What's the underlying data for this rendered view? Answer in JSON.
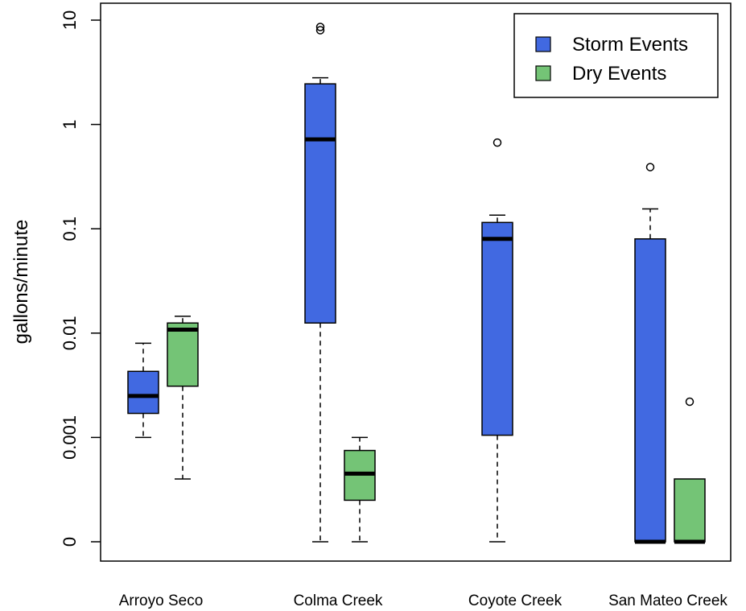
{
  "chart_data": {
    "type": "boxplot",
    "xlabel": "",
    "ylabel": "gallons/minute",
    "y_scale": "log",
    "y_ticks": [
      {
        "value": 0.0001,
        "label": "0"
      },
      {
        "value": 0.001,
        "label": "0.001"
      },
      {
        "value": 0.01,
        "label": "0.01"
      },
      {
        "value": 0.1,
        "label": "0.1"
      },
      {
        "value": 1,
        "label": "1"
      },
      {
        "value": 10,
        "label": "10"
      }
    ],
    "categories": [
      "Arroyo Seco",
      "Colma Creek",
      "Coyote Creek",
      "San Mateo Creek"
    ],
    "legend": {
      "position": "top-right",
      "entries": [
        {
          "label": "Storm Events",
          "color": "#4169e1"
        },
        {
          "label": "Dry Events",
          "color": "#74c476"
        }
      ]
    },
    "series": [
      {
        "name": "Storm Events",
        "color": "#4169e1",
        "boxes": [
          {
            "category": "Arroyo Seco",
            "whisker_low": 0.001,
            "q1": 0.0017,
            "median": 0.0025,
            "q3": 0.0043,
            "whisker_high": 0.008,
            "outliers": []
          },
          {
            "category": "Colma Creek",
            "whisker_low": 0.0001,
            "q1": 0.0125,
            "median": 0.72,
            "q3": 2.45,
            "whisker_high": 2.8,
            "outliers": [
              8.0,
              8.6
            ]
          },
          {
            "category": "Coyote Creek",
            "whisker_low": 0.0001,
            "q1": 0.00105,
            "median": 0.08,
            "q3": 0.115,
            "whisker_high": 0.135,
            "outliers": [
              0.67
            ]
          },
          {
            "category": "San Mateo Creek",
            "whisker_low": 0.0001,
            "q1": 0.0001,
            "median": 0.0001,
            "q3": 0.08,
            "whisker_high": 0.155,
            "outliers": [
              0.39
            ]
          }
        ]
      },
      {
        "name": "Dry Events",
        "color": "#74c476",
        "boxes": [
          {
            "category": "Arroyo Seco",
            "whisker_low": 0.0004,
            "q1": 0.0031,
            "median": 0.0108,
            "q3": 0.0125,
            "whisker_high": 0.0145,
            "outliers": []
          },
          {
            "category": "Colma Creek",
            "whisker_low": 0.0001,
            "q1": 0.00025,
            "median": 0.00045,
            "q3": 0.00075,
            "whisker_high": 0.001,
            "outliers": []
          },
          {
            "category": "San Mateo Creek",
            "whisker_low": 0.0001,
            "q1": 0.0001,
            "median": 0.0001,
            "q3": 0.0004,
            "whisker_high": 0.0004,
            "outliers": [
              0.0022
            ]
          }
        ]
      }
    ]
  }
}
